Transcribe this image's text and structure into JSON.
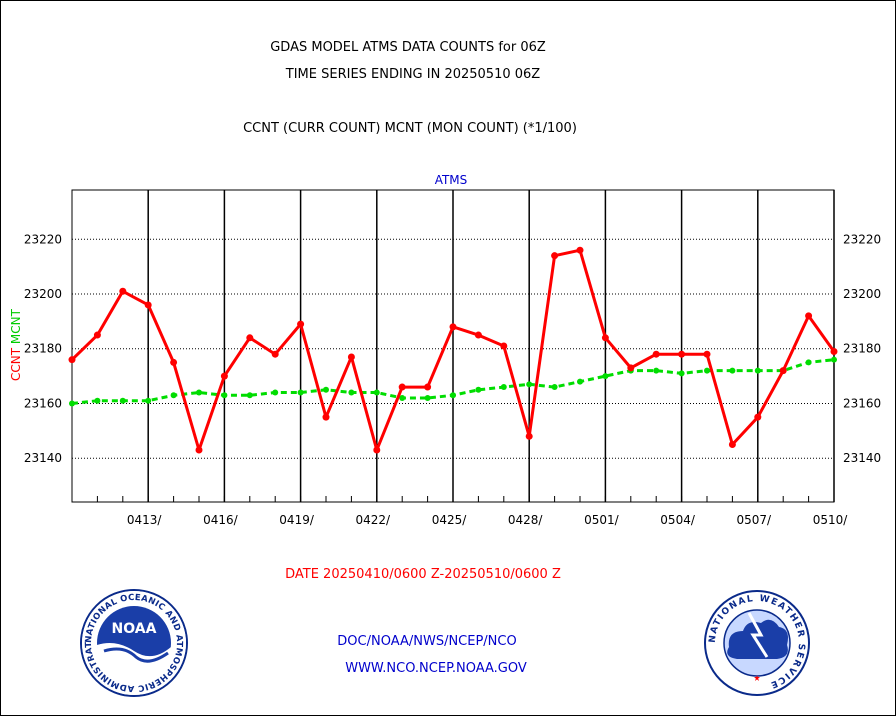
{
  "header": {
    "title_line1": "GDAS MODEL ATMS DATA COUNTS for 06Z",
    "title_line2": "TIME SERIES ENDING IN 20250510 06Z",
    "subtitle": "CCNT (CURR COUNT) MCNT (MON COUNT) (*1/100)"
  },
  "footer": {
    "date_range": "DATE 20250410/0600 Z-20250510/0600 Z",
    "org_path": "DOC/NOAA/NWS/NCEP/NCO",
    "website": "WWW.NCO.NCEP.NOAA.GOV"
  },
  "logos": {
    "noaa_text": "NOAA",
    "noaa_ring": "NATIONAL OCEANIC AND ATMOSPHERIC ADMINISTRATION · U.S. DEPARTMENT OF COMMERCE",
    "nws_ring": "NATIONAL WEATHER SERVICE"
  },
  "chart_data": {
    "type": "line",
    "title": "ATMS",
    "ylabel_series1": "CCNT",
    "ylabel_series2": "MCNT",
    "ylim": [
      23124,
      23238
    ],
    "yticks": [
      23140,
      23160,
      23180,
      23200,
      23220
    ],
    "xlim": [
      0,
      30
    ],
    "x_tick_labels": [
      "0413/",
      "0416/",
      "0419/",
      "0422/",
      "0425/",
      "0428/",
      "0501/",
      "0504/",
      "0507/",
      "0510/"
    ],
    "x_tick_positions": [
      3,
      6,
      9,
      12,
      15,
      18,
      21,
      24,
      27,
      30
    ],
    "grid": true,
    "colors": {
      "ccnt": "#ff0000",
      "mcnt": "#00dd00",
      "title": "#0000cc",
      "footer_red": "#ff0000",
      "footer_blue": "#0000cc"
    },
    "series": [
      {
        "name": "CCNT",
        "x": [
          0,
          1,
          2,
          3,
          4,
          5,
          6,
          7,
          8,
          9,
          10,
          11,
          12,
          13,
          14,
          15,
          16,
          17,
          18,
          19,
          20,
          21,
          22,
          23,
          24,
          25,
          26,
          27,
          28,
          29,
          30
        ],
        "values": [
          23176,
          23185,
          23201,
          23196,
          23175,
          23143,
          23170,
          23184,
          23178,
          23189,
          23155,
          23177,
          23143,
          23166,
          23166,
          23188,
          23185,
          23181,
          23148,
          23214,
          23216,
          23184,
          23173,
          23178,
          23178,
          23178,
          23145,
          23155,
          23172,
          23192,
          23179
        ]
      },
      {
        "name": "MCNT",
        "x": [
          0,
          1,
          2,
          3,
          4,
          5,
          6,
          7,
          8,
          9,
          10,
          11,
          12,
          13,
          14,
          15,
          16,
          17,
          18,
          19,
          20,
          21,
          22,
          23,
          24,
          25,
          26,
          27,
          28,
          29,
          30
        ],
        "values": [
          23160,
          23161,
          23161,
          23161,
          23163,
          23164,
          23163,
          23163,
          23164,
          23164,
          23165,
          23164,
          23164,
          23162,
          23162,
          23163,
          23165,
          23166,
          23167,
          23166,
          23168,
          23170,
          23172,
          23172,
          23171,
          23172,
          23172,
          23172,
          23172,
          23175,
          23176
        ]
      }
    ]
  }
}
